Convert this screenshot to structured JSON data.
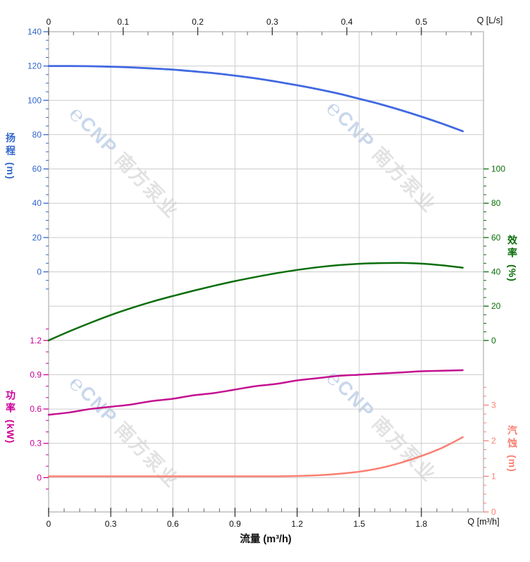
{
  "watermark": {
    "logo_glyph": "℮",
    "brand": "CNP",
    "company": "南方泵业"
  },
  "colors": {
    "grid": "#cccccc",
    "plot_border": "#c3c3c3",
    "axis_tick_dark": "#333333",
    "head_blue": "#3366cc",
    "head_curve_blue": "#4169e1",
    "efficiency_green": "#0a6e0a",
    "power_magenta": "#cc0099",
    "power_curve_magenta": "#c41190",
    "npsh_salmon": "#fa8072",
    "flow_title_black": "#111111"
  },
  "axes": {
    "top": {
      "unit_label": "Q [L/s]",
      "tick_labels": [
        "0",
        "0.1",
        "0.2",
        "0.3",
        "0.4",
        "0.5"
      ],
      "tick_values": [
        0,
        0.1,
        0.2,
        0.3,
        0.4,
        0.5
      ]
    },
    "bottom": {
      "unit_label": "Q [m³/h]",
      "title": "流量 (m³/h)",
      "tick_labels": [
        "0",
        "0.3",
        "0.6",
        "0.9",
        "1.2",
        "1.5",
        "1.8"
      ],
      "tick_values": [
        0,
        0.3,
        0.6,
        0.9,
        1.2,
        1.5,
        1.8
      ]
    },
    "head": {
      "title": "扬程",
      "unit": "(m)",
      "tick_labels": [
        "140",
        "120",
        "100",
        "80",
        "60",
        "40",
        "20",
        "0"
      ],
      "tick_values": [
        140,
        120,
        100,
        80,
        60,
        40,
        20,
        0
      ]
    },
    "efficiency": {
      "title": "效率",
      "unit": "(%)",
      "tick_labels": [
        "100",
        "80",
        "60",
        "40",
        "20",
        "0"
      ],
      "tick_values": [
        100,
        80,
        60,
        40,
        20,
        0
      ]
    },
    "power": {
      "title": "功率",
      "unit": "(kW)",
      "tick_labels": [
        "1.2",
        "0.9",
        "0.6",
        "0.3",
        "0"
      ],
      "tick_values": [
        1.2,
        0.9,
        0.6,
        0.3,
        0
      ]
    },
    "npsh": {
      "title": "汽蚀",
      "unit": "(m)",
      "tick_labels": [
        "3",
        "2",
        "1",
        "0"
      ],
      "tick_values": [
        3,
        2,
        1,
        0
      ]
    }
  },
  "chart_data": {
    "type": "line",
    "title": "",
    "xlabel": "流量 (m³/h)",
    "x_secondary_label": "Q [L/s]",
    "x_range_m3h": [
      0,
      2.1
    ],
    "x_secondary_range_ls": [
      0,
      0.583
    ],
    "grid": true,
    "x": [
      0,
      0.1,
      0.2,
      0.3,
      0.4,
      0.5,
      0.6,
      0.7,
      0.8,
      0.9,
      1.0,
      1.1,
      1.2,
      1.3,
      1.4,
      1.5,
      1.6,
      1.7,
      1.8,
      1.9,
      2.0
    ],
    "series": [
      {
        "name": "扬程",
        "unit": "m",
        "scale": "head",
        "color": "#4169e1",
        "values": [
          120,
          120,
          119.9,
          119.6,
          119.2,
          118.6,
          117.9,
          116.9,
          115.8,
          114.4,
          112.8,
          110.9,
          108.8,
          106.5,
          103.9,
          100.9,
          97.8,
          94.3,
          90.5,
          86.4,
          82
        ]
      },
      {
        "name": "效率",
        "unit": "%",
        "scale": "efficiency",
        "color": "#0a6e0a",
        "values": [
          0,
          5.3,
          10.2,
          14.8,
          18.9,
          22.6,
          25.9,
          29,
          31.9,
          34.6,
          37,
          39.2,
          41.1,
          42.7,
          43.9,
          44.7,
          45.1,
          45.2,
          44.8,
          43.8,
          42.4
        ]
      },
      {
        "name": "功率",
        "unit": "kW",
        "scale": "power",
        "color": "#c41190",
        "values": [
          0.55,
          0.57,
          0.6,
          0.62,
          0.64,
          0.67,
          0.69,
          0.72,
          0.74,
          0.77,
          0.8,
          0.82,
          0.85,
          0.87,
          0.89,
          0.9,
          0.91,
          0.92,
          0.93,
          0.935,
          0.94
        ]
      },
      {
        "name": "汽蚀",
        "unit": "m",
        "scale": "npsh",
        "color": "#fa8072",
        "values": [
          1,
          1,
          1,
          1,
          1,
          1,
          1,
          1,
          1,
          1,
          1,
          1,
          1.01,
          1.03,
          1.07,
          1.13,
          1.23,
          1.38,
          1.57,
          1.8,
          2.1
        ]
      }
    ],
    "scales": {
      "head": {
        "label": "扬程 (m)",
        "shown_ticks": [
          0,
          20,
          40,
          60,
          80,
          100,
          120,
          140
        ],
        "minor_step": 5
      },
      "efficiency": {
        "label": "效率 (%)",
        "shown_ticks": [
          0,
          20,
          40,
          60,
          80,
          100
        ],
        "minor_step": 5
      },
      "power": {
        "label": "功率 (kW)",
        "shown_ticks": [
          0,
          0.3,
          0.6,
          0.9,
          1.2
        ],
        "minor_step": 0.1
      },
      "npsh": {
        "label": "汽蚀 (m)",
        "shown_ticks": [
          0,
          1,
          2,
          3
        ],
        "minor_step": 0.25
      }
    }
  }
}
